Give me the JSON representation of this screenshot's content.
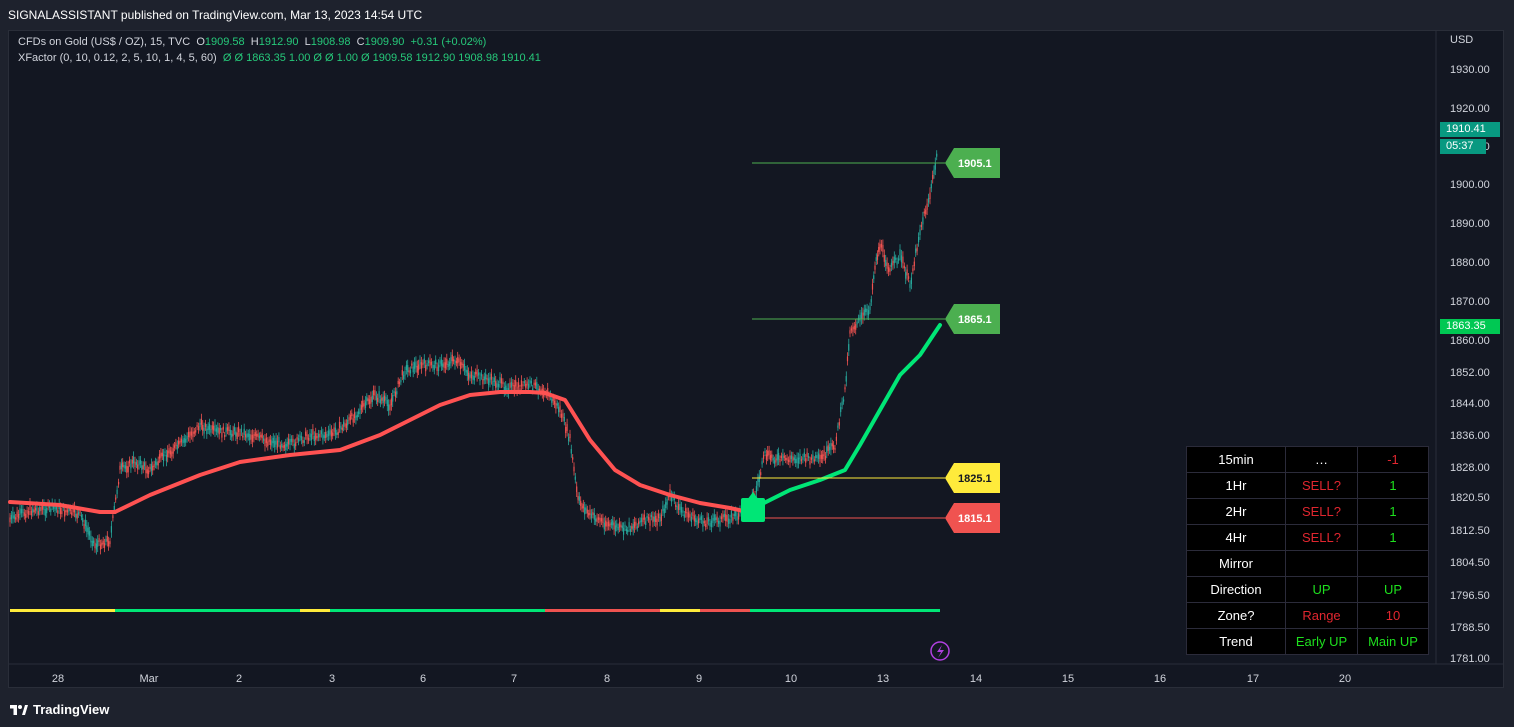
{
  "publisher_line": "SIGNALASSISTANT published on TradingView.com, Mar 13, 2023 14:54 UTC",
  "symbol_legend": {
    "name": "CFDs on Gold (US$ / OZ), 15, TVC",
    "o_label": "O",
    "o": "1909.58",
    "h_label": "H",
    "h": "1912.90",
    "l_label": "L",
    "l": "1908.98",
    "c_label": "C",
    "c": "1909.90",
    "change": "+0.31 (+0.02%)"
  },
  "indicator_legend": {
    "name": "XFactor (0, 10, 0.12, 2, 5, 10, 1, 4, 5, 60)",
    "values": "Ø  Ø  1863.35  1.00  Ø  Ø  1.00  Ø  1909.58  1912.90  1908.98  1910.41"
  },
  "currency": "USD",
  "price_axis": [
    "1930.00",
    "1920.00",
    "1910.00",
    "1900.00",
    "1890.00",
    "1880.00",
    "1870.00",
    "1860.00",
    "1852.00",
    "1844.00",
    "1836.00",
    "1828.00",
    "1820.50",
    "1812.50",
    "1804.50",
    "1796.50",
    "1788.50",
    "1781.00"
  ],
  "time_axis": [
    "28",
    "Mar",
    "2",
    "3",
    "6",
    "7",
    "8",
    "9",
    "10",
    "13",
    "14",
    "15",
    "16",
    "17",
    "20"
  ],
  "current_price_tag": "1910.41",
  "countdown_tag": "05:37",
  "ma_price_tag": "1863.35",
  "levels": [
    {
      "label": "1905.1",
      "color": "#4caf50"
    },
    {
      "label": "1865.1",
      "color": "#4caf50"
    },
    {
      "label": "1825.1",
      "color": "#ffeb3b"
    },
    {
      "label": "1815.1",
      "color": "#f05350"
    }
  ],
  "signal_table": [
    [
      "15min",
      "…",
      "-1"
    ],
    [
      "1Hr",
      "SELL?",
      "1"
    ],
    [
      "2Hr",
      "SELL?",
      "1"
    ],
    [
      "4Hr",
      "SELL?",
      "1"
    ],
    [
      "Mirror",
      "",
      ""
    ],
    [
      "Direction",
      "UP",
      "UP"
    ],
    [
      "Zone?",
      "Range",
      "10"
    ],
    [
      "Trend",
      "Early UP",
      "Main UP"
    ]
  ],
  "colors": {
    "up": "#26a69a",
    "down": "#ef5350",
    "ma_up": "#00e676",
    "ma_down": "#ff5252",
    "background": "#131722"
  },
  "brand": "TradingView",
  "icons": [
    "lightning-icon",
    "tradingview-logo-icon"
  ]
}
